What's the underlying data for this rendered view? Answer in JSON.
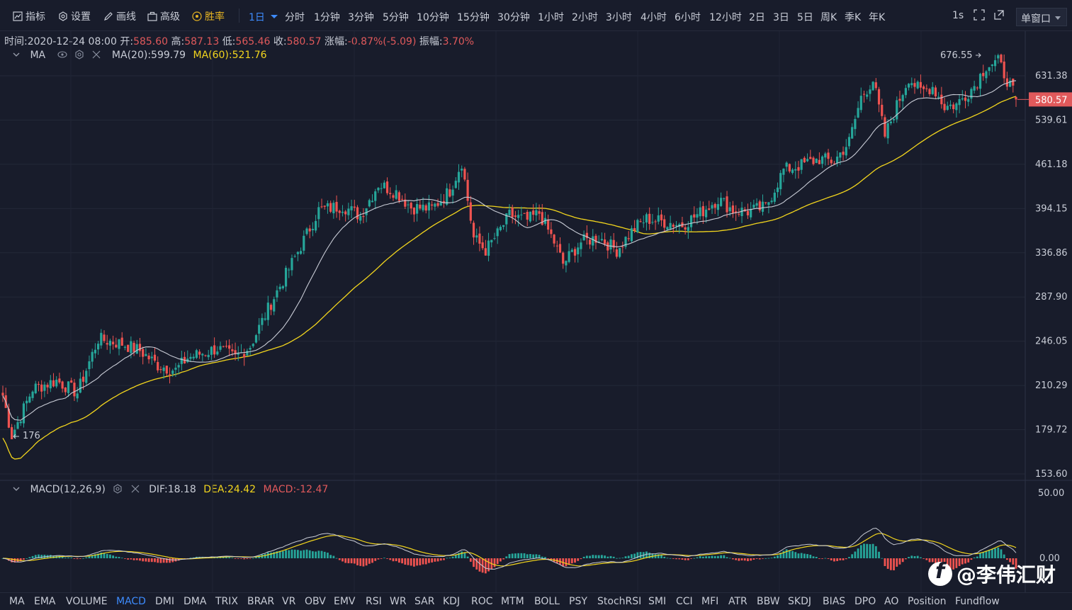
{
  "toolbar": {
    "tools": [
      {
        "id": "indicator",
        "label": "指标"
      },
      {
        "id": "settings",
        "label": "设置"
      },
      {
        "id": "draw",
        "label": "画线"
      },
      {
        "id": "advanced",
        "label": "高级"
      },
      {
        "id": "winrate",
        "label": "胜率"
      }
    ],
    "active_timeframe": "1日",
    "timeframes": [
      "分时",
      "1分钟",
      "3分钟",
      "5分钟",
      "10分钟",
      "15分钟",
      "30分钟",
      "1小时",
      "2小时",
      "3小时",
      "4小时",
      "6小时",
      "12小时",
      "2日",
      "3日",
      "5日",
      "周K",
      "季K",
      "年K"
    ],
    "interval": "1s",
    "window_mode": "单窗口"
  },
  "ohlc": {
    "time_label": "时间:",
    "time": "2020-12-24 08:00",
    "open_label": "开:",
    "open": "585.60",
    "high_label": "高:",
    "high": "587.13",
    "low_label": "低:",
    "low": "565.46",
    "close_label": "收:",
    "close": "580.57",
    "change_label": "涨幅:",
    "change": "-0.87%(-5.09)",
    "amp_label": "振幅:",
    "amp": "3.70%"
  },
  "ma_legend": {
    "name": "MA",
    "ma20": "MA(20):599.79",
    "ma60": "MA(60):521.76"
  },
  "macd_legend": {
    "name": "MACD(12,26,9)",
    "dif": "DIF:18.18",
    "dea": "DEA:24.42",
    "macd": "MACD:-12.47"
  },
  "price_axis": [
    "631.38",
    "539.61",
    "461.18",
    "394.15",
    "336.86",
    "287.90",
    "246.05",
    "210.29",
    "179.72",
    "153.60"
  ],
  "current_price": "580.57",
  "high_marker": "676.55",
  "low_marker": "176",
  "macd_axis": [
    "50.00",
    "0.00"
  ],
  "indicators": [
    "MA",
    "EMA",
    "VOLUME",
    "MACD",
    "DMI",
    "DMA",
    "TRIX",
    "BRAR",
    "VR",
    "OBV",
    "EMV",
    "RSI",
    "WR",
    "SAR",
    "KDJ",
    "ROC",
    "MTM",
    "BOLL",
    "PSY",
    "StochRSI",
    "SMI",
    "CCI",
    "MFI",
    "ATR",
    "BBW",
    "SKDJ",
    "BIAS",
    "DPO",
    "AO",
    "Position",
    "Fundflow"
  ],
  "active_indicator": "MACD",
  "watermark": "@李伟汇财",
  "colors": {
    "up": "#26a69a",
    "down": "#ef5350",
    "ma20": "#c9ccd6",
    "ma60": "#f2d51d",
    "accent": "#3d8bfd",
    "bg": "#181c2b"
  },
  "chart_data": {
    "type": "candlestick",
    "period": "1D",
    "y_scale": "log",
    "y_ticks": [
      631.38,
      539.61,
      461.18,
      394.15,
      336.86,
      287.9,
      246.05,
      210.29,
      179.72,
      153.6
    ],
    "anchors": [
      {
        "i": 0,
        "c": 203
      },
      {
        "i": 3,
        "c": 176
      },
      {
        "i": 10,
        "c": 208
      },
      {
        "i": 18,
        "c": 214
      },
      {
        "i": 25,
        "c": 205
      },
      {
        "i": 32,
        "c": 248
      },
      {
        "i": 40,
        "c": 244
      },
      {
        "i": 46,
        "c": 238
      },
      {
        "i": 52,
        "c": 226
      },
      {
        "i": 58,
        "c": 222
      },
      {
        "i": 62,
        "c": 232
      },
      {
        "i": 72,
        "c": 240
      },
      {
        "i": 78,
        "c": 232
      },
      {
        "i": 83,
        "c": 242
      },
      {
        "i": 90,
        "c": 282
      },
      {
        "i": 96,
        "c": 318
      },
      {
        "i": 102,
        "c": 360
      },
      {
        "i": 106,
        "c": 392
      },
      {
        "i": 114,
        "c": 398
      },
      {
        "i": 120,
        "c": 384
      },
      {
        "i": 126,
        "c": 430
      },
      {
        "i": 132,
        "c": 418
      },
      {
        "i": 137,
        "c": 396
      },
      {
        "i": 144,
        "c": 394
      },
      {
        "i": 150,
        "c": 420
      },
      {
        "i": 154,
        "c": 465
      },
      {
        "i": 158,
        "c": 355
      },
      {
        "i": 162,
        "c": 340
      },
      {
        "i": 166,
        "c": 360
      },
      {
        "i": 170,
        "c": 385
      },
      {
        "i": 176,
        "c": 378
      },
      {
        "i": 180,
        "c": 388
      },
      {
        "i": 185,
        "c": 350
      },
      {
        "i": 188,
        "c": 324
      },
      {
        "i": 194,
        "c": 350
      },
      {
        "i": 200,
        "c": 356
      },
      {
        "i": 206,
        "c": 340
      },
      {
        "i": 212,
        "c": 368
      },
      {
        "i": 216,
        "c": 380
      },
      {
        "i": 222,
        "c": 376
      },
      {
        "i": 228,
        "c": 372
      },
      {
        "i": 234,
        "c": 388
      },
      {
        "i": 240,
        "c": 408
      },
      {
        "i": 245,
        "c": 392
      },
      {
        "i": 250,
        "c": 390
      },
      {
        "i": 256,
        "c": 396
      },
      {
        "i": 262,
        "c": 452
      },
      {
        "i": 268,
        "c": 460
      },
      {
        "i": 274,
        "c": 470
      },
      {
        "i": 279,
        "c": 466
      },
      {
        "i": 284,
        "c": 500
      },
      {
        "i": 288,
        "c": 585
      },
      {
        "i": 292,
        "c": 622
      },
      {
        "i": 296,
        "c": 510
      },
      {
        "i": 300,
        "c": 568
      },
      {
        "i": 304,
        "c": 628
      },
      {
        "i": 308,
        "c": 596
      },
      {
        "i": 312,
        "c": 608
      },
      {
        "i": 316,
        "c": 566
      },
      {
        "i": 320,
        "c": 570
      },
      {
        "i": 326,
        "c": 610
      },
      {
        "i": 330,
        "c": 655
      },
      {
        "i": 334,
        "c": 664
      },
      {
        "i": 338,
        "c": 610
      },
      {
        "i": 340,
        "c": 580.57
      }
    ],
    "last": {
      "date": "2020-12-24",
      "open": 585.6,
      "high": 587.13,
      "low": 565.46,
      "close": 580.57
    },
    "ma20_last": 599.79,
    "ma60_last": 521.76,
    "macd_last": {
      "dif": 18.18,
      "dea": 24.42,
      "macd": -12.47
    }
  }
}
